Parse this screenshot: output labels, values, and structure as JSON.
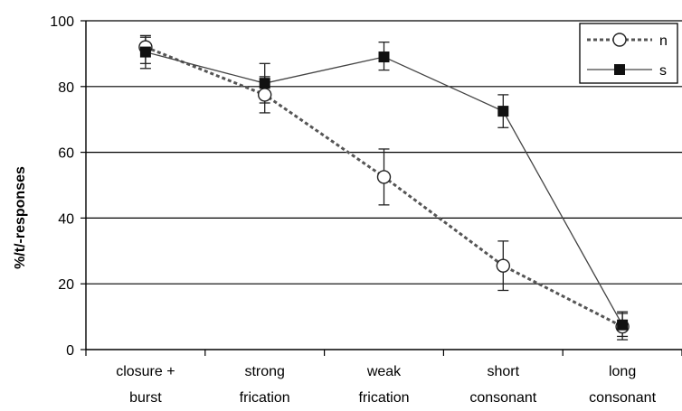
{
  "chart_data": {
    "type": "line",
    "categories": [
      [
        "closure +",
        "burst"
      ],
      [
        "strong",
        "frication"
      ],
      [
        "weak",
        "frication"
      ],
      [
        "short",
        "consonant"
      ],
      [
        "long",
        "consonant"
      ]
    ],
    "ylabel": "%/t/-responses",
    "xlabel": "",
    "ylim": [
      0,
      100
    ],
    "yticks": [
      0,
      20,
      40,
      60,
      80,
      100
    ],
    "grid": "horizontal",
    "legend_position": "top-right",
    "series": [
      {
        "name": "n",
        "style": "dashed",
        "marker": "open-circle",
        "color": "#555555",
        "values": [
          92,
          77.5,
          52.5,
          25.5,
          7
        ],
        "err_low": [
          87,
          72,
          44,
          18,
          3
        ],
        "err_high": [
          95,
          83,
          61,
          33,
          11
        ]
      },
      {
        "name": "s",
        "style": "solid",
        "marker": "filled-square",
        "color": "#444444",
        "values": [
          90.5,
          81,
          89,
          72.5,
          7.5
        ],
        "err_low": [
          85.5,
          75,
          85,
          67.5,
          4
        ],
        "err_high": [
          95.5,
          87,
          93.5,
          77.5,
          11.5
        ]
      }
    ]
  }
}
